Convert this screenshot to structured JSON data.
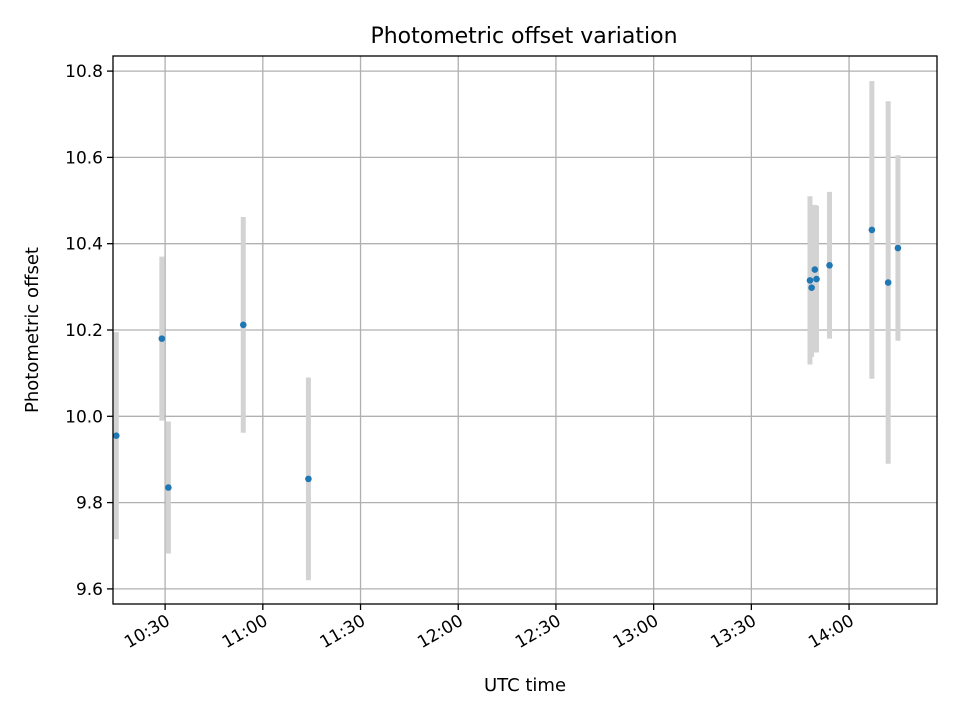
{
  "chart_data": {
    "type": "scatter",
    "title": "Photometric offset variation",
    "xlabel": "UTC time",
    "ylabel": "Photometric offset",
    "grid": true,
    "x_axis": {
      "kind": "time",
      "range": [
        "10:14",
        "14:27"
      ],
      "ticks": [
        "10:30",
        "11:00",
        "11:30",
        "12:00",
        "12:30",
        "13:00",
        "13:30",
        "14:00"
      ]
    },
    "y_axis": {
      "range": [
        9.565,
        10.835
      ],
      "ticks": [
        "9.6",
        "9.8",
        "10.0",
        "10.2",
        "10.4",
        "10.6",
        "10.8"
      ]
    },
    "colors": {
      "point": "#1f77b4",
      "errorbar": "#d3d3d3"
    },
    "points": [
      {
        "time": "10:15",
        "value": 9.955,
        "error": 0.24
      },
      {
        "time": "10:29",
        "value": 10.18,
        "error": 0.19
      },
      {
        "time": "10:31",
        "value": 9.835,
        "error": 0.153
      },
      {
        "time": "10:54",
        "value": 10.212,
        "error": 0.25
      },
      {
        "time": "11:14",
        "value": 9.855,
        "error": 0.235
      },
      {
        "time": "13:48",
        "value": 10.315,
        "error": 0.195
      },
      {
        "time": "13:48.5",
        "value": 10.298,
        "error": 0.16
      },
      {
        "time": "13:49.5",
        "value": 10.34,
        "error": 0.15
      },
      {
        "time": "13:50",
        "value": 10.318,
        "error": 0.17
      },
      {
        "time": "13:54",
        "value": 10.35,
        "error": 0.17
      },
      {
        "time": "14:07",
        "value": 10.432,
        "error": 0.345
      },
      {
        "time": "14:12",
        "value": 10.31,
        "error": 0.42
      },
      {
        "time": "14:15",
        "value": 10.39,
        "error": 0.215
      }
    ]
  }
}
